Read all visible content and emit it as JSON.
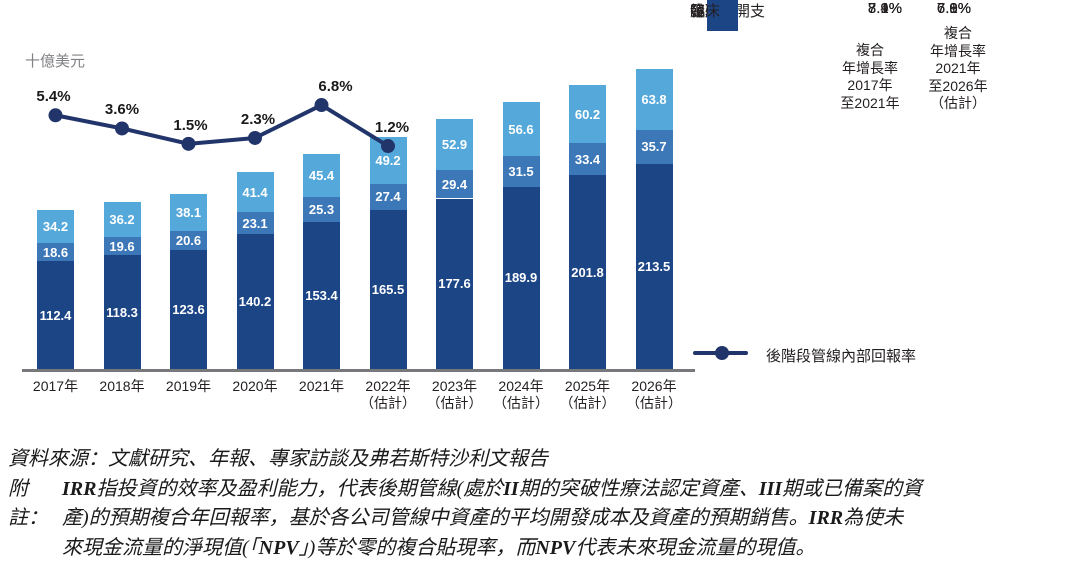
{
  "unit_label": "十億美元",
  "chart_data": {
    "type": "stacked-bar-line",
    "title": "",
    "ylabel": "十億美元",
    "categories": [
      "2017年",
      "2018年",
      "2019年",
      "2020年",
      "2021年",
      "2022年",
      "2023年",
      "2024年",
      "2025年",
      "2026年"
    ],
    "estimate_suffix": "（估計）",
    "estimate_from_index": 5,
    "series": [
      {
        "name": "臨床",
        "color": "#1c4586",
        "values": [
          112.4,
          118.3,
          123.6,
          140.2,
          153.4,
          165.5,
          177.6,
          189.9,
          201.8,
          213.5
        ]
      },
      {
        "name": "臨床前",
        "color": "#3c77b7",
        "values": [
          18.6,
          19.6,
          20.6,
          23.1,
          25.3,
          27.4,
          29.4,
          31.5,
          33.4,
          35.7
        ]
      },
      {
        "name": "發現",
        "color": "#55a8da",
        "values": [
          34.2,
          36.2,
          38.1,
          41.4,
          45.4,
          49.2,
          52.9,
          56.6,
          60.2,
          63.8
        ]
      }
    ],
    "line_series": {
      "name": "後階段管線內部回報率",
      "color": "#21356b",
      "values_pct": [
        5.4,
        3.6,
        1.5,
        2.3,
        6.8,
        1.2
      ],
      "labels": [
        "5.4%",
        "3.6%",
        "1.5%",
        "2.3%",
        "6.8%",
        "1.2%"
      ]
    }
  },
  "legend": {
    "col1_header_lines": [
      "複合",
      "年增長率",
      "2017年",
      "至2021年"
    ],
    "col2_header_lines": [
      "複合",
      "年增長率",
      "2021年",
      "至2026年",
      "（估計）"
    ],
    "rows": [
      {
        "label": "總研發開支",
        "swatch": null,
        "cagr1": "7.9%",
        "cagr2": "6.9%"
      },
      {
        "label": "發現",
        "swatch": "#55a8da",
        "cagr1": "7.4%",
        "cagr2": "7.0%"
      },
      {
        "label": "臨床前",
        "swatch": "#3c77b7",
        "cagr1": "8.1%",
        "cagr2": "7.1%"
      },
      {
        "label": "臨床",
        "swatch": "#1c4586",
        "cagr1": "8.1%",
        "cagr2": "6.8%"
      }
    ],
    "line_row_label": "後階段管線內部回報率",
    "line_color": "#21356b"
  },
  "footer": {
    "source_line": "資料來源：文獻研究、年報、專家訪談及弗若斯特沙利文報告",
    "note_label": "附註：",
    "note_lines": [
      "IRR指投資的效率及盈利能力，代表後期管線(處於II期的突破性療法認定資產、III期或已備案的資",
      "產)的預期複合年回報率，基於各公司管線中資產的平均開發成本及資產的預期銷售。IRR為使未",
      "來現金流量的淨現值(「NPV」)等於零的複合貼現率，而NPV代表未來現金流量的現值。"
    ]
  }
}
